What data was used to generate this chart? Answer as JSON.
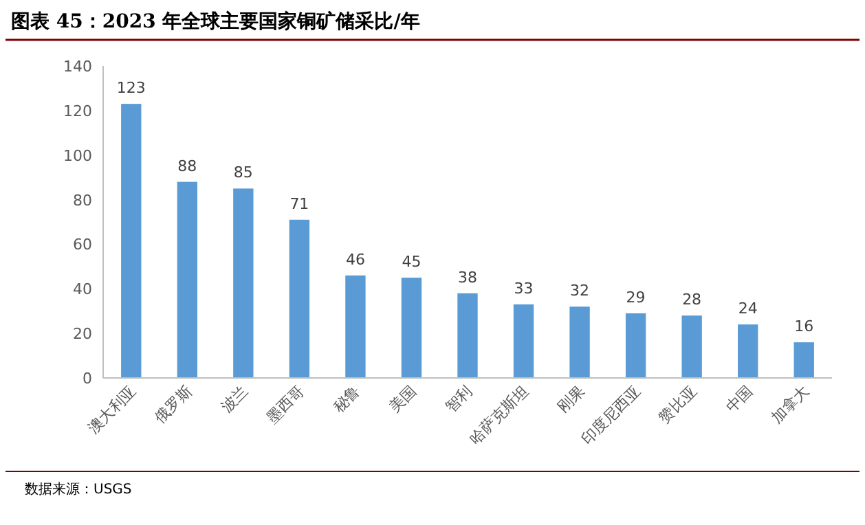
{
  "chart_data": {
    "type": "bar",
    "title": "图表 45：2023 年全球主要国家铜矿储采比/年",
    "categories": [
      "澳大利亚",
      "俄罗斯",
      "波兰",
      "墨西哥",
      "秘鲁",
      "美国",
      "智利",
      "哈萨克斯坦",
      "刚果",
      "印度尼西亚",
      "赞比亚",
      "中国",
      "加拿大"
    ],
    "values": [
      123,
      88,
      85,
      71,
      46,
      45,
      38,
      33,
      32,
      29,
      28,
      24,
      16
    ],
    "color": "#5b9bd5",
    "ylim": [
      0,
      140
    ],
    "yticks": [
      0,
      20,
      40,
      60,
      80,
      100,
      120,
      140
    ],
    "data_labels": true,
    "annotations": [
      "数据来源：USGS"
    ]
  }
}
